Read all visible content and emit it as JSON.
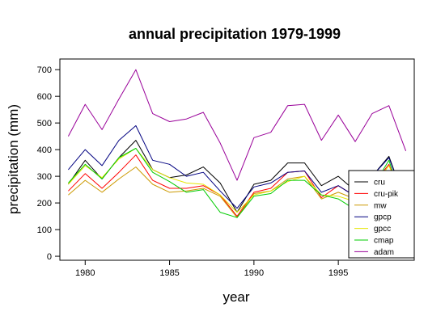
{
  "chart_data": {
    "type": "line",
    "title": "annual precipitation 1979-1999",
    "xlabel": "year",
    "ylabel": "precipitation (mm)",
    "xlim": [
      1978.5,
      1999.5
    ],
    "ylim": [
      -15,
      740
    ],
    "x_ticks": [
      1980,
      1985,
      1990,
      1995
    ],
    "y_ticks": [
      0,
      100,
      200,
      300,
      400,
      500,
      600,
      700
    ],
    "grid": false,
    "legend_position": "bottom-right",
    "x": [
      1979,
      1980,
      1981,
      1982,
      1983,
      1984,
      1985,
      1986,
      1987,
      1988,
      1989,
      1990,
      1991,
      1992,
      1993,
      1994,
      1995,
      1996,
      1997,
      1998,
      1999
    ],
    "series": [
      {
        "name": "cru",
        "color": "#000000",
        "values": [
          270,
          360,
          290,
          370,
          435,
          325,
          295,
          305,
          335,
          275,
          165,
          270,
          285,
          350,
          350,
          265,
          300,
          245,
          300,
          375,
          200
        ]
      },
      {
        "name": "cru-pik",
        "color": "#ff0000",
        "values": [
          245,
          310,
          255,
          315,
          380,
          285,
          255,
          255,
          265,
          230,
          150,
          240,
          255,
          315,
          320,
          220,
          265,
          225,
          265,
          345,
          180
        ]
      },
      {
        "name": "mw",
        "color": "#cc9900",
        "values": [
          230,
          285,
          240,
          290,
          335,
          270,
          240,
          245,
          255,
          225,
          145,
          235,
          245,
          290,
          300,
          215,
          240,
          215,
          245,
          300,
          170
        ]
      },
      {
        "name": "gpcp",
        "color": "#000080",
        "values": [
          325,
          400,
          340,
          435,
          490,
          360,
          345,
          300,
          315,
          245,
          180,
          260,
          275,
          315,
          320,
          240,
          265,
          225,
          300,
          370,
          200
        ]
      },
      {
        "name": "gpcc",
        "color": "#e6e600",
        "values": [
          270,
          340,
          295,
          365,
          405,
          325,
          295,
          275,
          270,
          230,
          165,
          230,
          245,
          280,
          300,
          230,
          225,
          205,
          255,
          340,
          185
        ]
      },
      {
        "name": "cmap",
        "color": "#00cc00",
        "values": [
          275,
          345,
          290,
          370,
          405,
          315,
          280,
          240,
          250,
          165,
          145,
          225,
          235,
          285,
          285,
          230,
          215,
          175,
          255,
          360,
          160
        ]
      },
      {
        "name": "adam",
        "color": "#990099",
        "values": [
          450,
          570,
          475,
          590,
          700,
          535,
          505,
          515,
          540,
          425,
          285,
          445,
          465,
          565,
          570,
          435,
          530,
          430,
          535,
          565,
          395
        ]
      }
    ]
  }
}
